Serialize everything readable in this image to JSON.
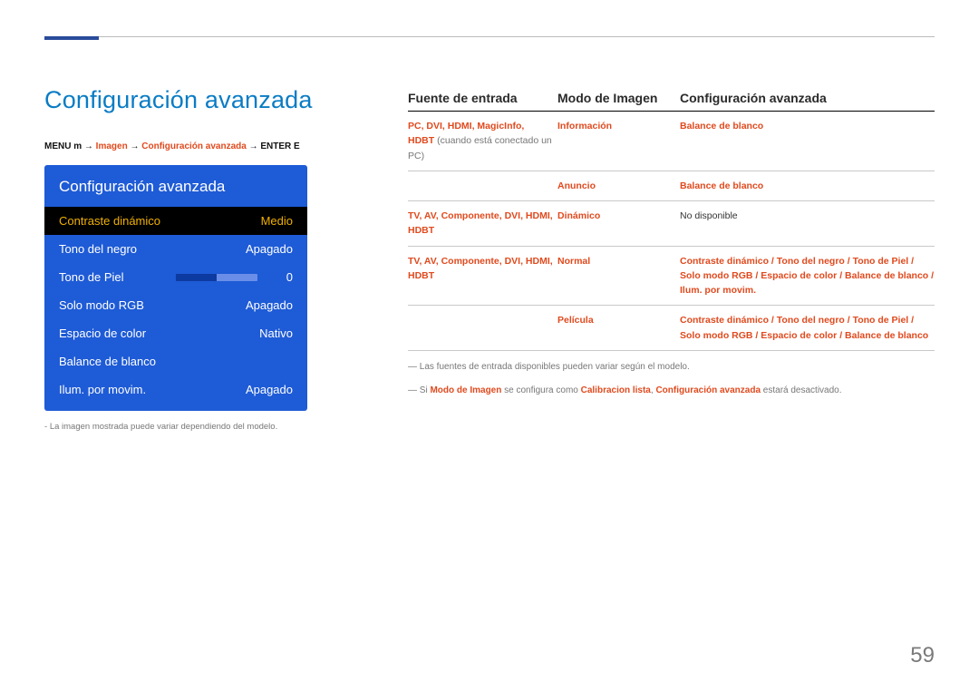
{
  "colors": {
    "accent_blue": "#0a7cc4",
    "panel_bg": "#1e5bd6",
    "highlight_row_bg": "#000000",
    "highlight_text": "#f0b000",
    "orange": "#e04a1e",
    "top_bar": "#2a4b9b",
    "slider_track": "#6a8ee8",
    "slider_fill": "#0d3aa0",
    "body_text": "#333333",
    "caption_grey": "#777777"
  },
  "page": {
    "title": "Configuración avanzada",
    "number": "59"
  },
  "breadcrumb": {
    "pre": "MENU m  → ",
    "path1": "Imagen",
    "sep": " → ",
    "path2": "Configuración avanzada",
    "post": " → ENTER E"
  },
  "osd": {
    "title": "Configuración avanzada",
    "rows": [
      {
        "label": "Contraste dinámico",
        "value": "Medio",
        "highlight": true
      },
      {
        "label": "Tono del negro",
        "value": "Apagado"
      },
      {
        "label": "Tono de Piel",
        "value": "0",
        "slider": true
      },
      {
        "label": "Solo modo RGB",
        "value": "Apagado"
      },
      {
        "label": "Espacio de color",
        "value": "Nativo"
      },
      {
        "label": "Balance de blanco",
        "value": ""
      },
      {
        "label": "Ilum. por movim.",
        "value": "Apagado"
      }
    ],
    "caption": "La imagen mostrada puede variar dependiendo del modelo."
  },
  "table": {
    "headers": {
      "c1": "Fuente de entrada",
      "c2": "Modo de Imagen",
      "c3": "Configuración avanzada"
    },
    "rows": [
      {
        "c1_hl": "PC, DVI, HDMI, MagicInfo,",
        "c1_hl2": "HDBT",
        "c1_plain": " (cuando está conectado un PC)",
        "c2": "Información",
        "c3": "Balance de blanco"
      },
      {
        "c2": "Anuncio",
        "c3": "Balance de blanco",
        "continuation": true
      },
      {
        "c1_hl": "TV, AV, Componente, DVI, HDMI, HDBT",
        "c2": "Dinámico",
        "c3_plain": "No disponible"
      },
      {
        "c1_hl": "TV, AV, Componente, DVI, HDMI, HDBT",
        "c2": "Normal",
        "c3_multi": "Contraste dinámico / Tono del negro / Tono de Piel / Solo modo RGB / Espacio de color / Balance de blanco / Ilum. por movim."
      },
      {
        "c2": "Película",
        "c3_multi": "Contraste dinámico / Tono del negro / Tono de Piel / Solo modo RGB / Espacio de color / Balance de blanco",
        "continuation": true
      }
    ],
    "footnotes": {
      "n1_pre": "― Las fuentes de entrada disponibles pueden variar según el modelo.",
      "n2_pre": "― Si ",
      "n2_hl1": "Modo de Imagen",
      "n2_mid": " se configura como ",
      "n2_hl2": "Calibracion lista",
      "n2_sep": ", ",
      "n2_hl3": "Configuración avanzada",
      "n2_post": " estará desactivado."
    }
  }
}
